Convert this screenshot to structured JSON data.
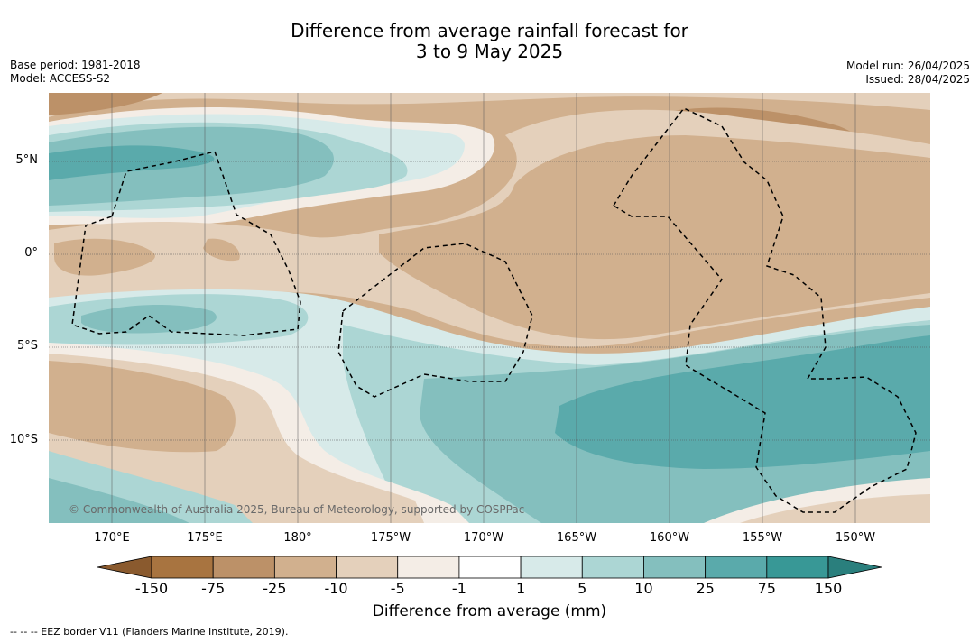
{
  "title_line1": "Difference from average rainfall forecast for",
  "title_line2": "3 to 9 May 2025",
  "base_period": "Base period: 1981-2018",
  "model": "Model: ACCESS-S2",
  "model_run": "Model run: 26/04/2025",
  "issued": "Issued: 28/04/2025",
  "copyright": "© Commonwealth of Australia 2025, Bureau of Meteorology, supported by COSPPac",
  "lat_labels": [
    "5°N",
    "0°",
    "5°S",
    "10°S"
  ],
  "lon_labels": [
    "170°E",
    "175°E",
    "180°",
    "175°W",
    "170°W",
    "165°W",
    "160°W",
    "155°W",
    "150°W"
  ],
  "colorbar": {
    "ticks": [
      "-150",
      "-75",
      "-25",
      "-10",
      "-5",
      "-1",
      "1",
      "5",
      "10",
      "25",
      "75",
      "150"
    ],
    "colors": [
      "#a87440",
      "#bc9168",
      "#d1b08e",
      "#e4d0bb",
      "#f4ede6",
      "#ffffff",
      "#d7eae9",
      "#acd6d4",
      "#84bfbe",
      "#5aaaab",
      "#389896"
    ],
    "label": "Difference from average (mm)"
  },
  "footer": "--  --  -- EEZ border V11 (Flanders Marine Institute, 2019)."
}
